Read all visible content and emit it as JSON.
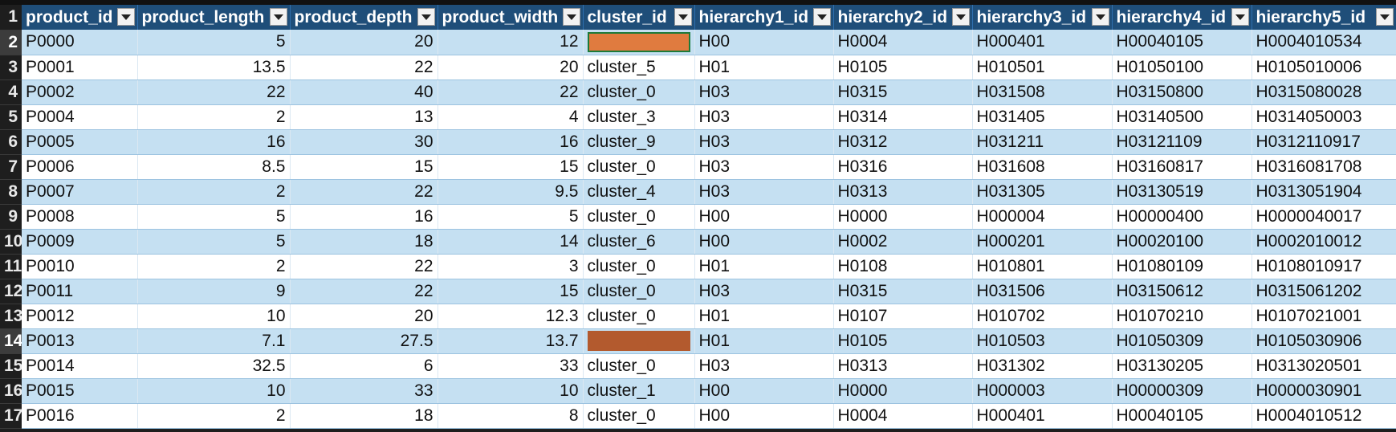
{
  "columns": [
    "product_id",
    "product_length",
    "product_depth",
    "product_width",
    "cluster_id",
    "hierarchy1_id",
    "hierarchy2_id",
    "hierarchy3_id",
    "hierarchy4_id",
    "hierarchy5_id"
  ],
  "header_row_number": "1",
  "rows": [
    {
      "n": "2",
      "product_id": "P0000",
      "product_length": "5",
      "product_depth": "20",
      "product_width": "12",
      "cluster_id": "",
      "cluster_fill": "#e07b3f",
      "h1": "H00",
      "h2": "H0004",
      "h3": "H000401",
      "h4": "H00040105",
      "h5": "H0004010534"
    },
    {
      "n": "3",
      "product_id": "P0001",
      "product_length": "13.5",
      "product_depth": "22",
      "product_width": "20",
      "cluster_id": "cluster_5",
      "h1": "H01",
      "h2": "H0105",
      "h3": "H010501",
      "h4": "H01050100",
      "h5": "H0105010006"
    },
    {
      "n": "4",
      "product_id": "P0002",
      "product_length": "22",
      "product_depth": "40",
      "product_width": "22",
      "cluster_id": "cluster_0",
      "h1": "H03",
      "h2": "H0315",
      "h3": "H031508",
      "h4": "H03150800",
      "h5": "H0315080028"
    },
    {
      "n": "5",
      "product_id": "P0004",
      "product_length": "2",
      "product_depth": "13",
      "product_width": "4",
      "cluster_id": "cluster_3",
      "h1": "H03",
      "h2": "H0314",
      "h3": "H031405",
      "h4": "H03140500",
      "h5": "H0314050003"
    },
    {
      "n": "6",
      "product_id": "P0005",
      "product_length": "16",
      "product_depth": "30",
      "product_width": "16",
      "cluster_id": "cluster_9",
      "h1": "H03",
      "h2": "H0312",
      "h3": "H031211",
      "h4": "H03121109",
      "h5": "H0312110917"
    },
    {
      "n": "7",
      "product_id": "P0006",
      "product_length": "8.5",
      "product_depth": "15",
      "product_width": "15",
      "cluster_id": "cluster_0",
      "h1": "H03",
      "h2": "H0316",
      "h3": "H031608",
      "h4": "H03160817",
      "h5": "H0316081708"
    },
    {
      "n": "8",
      "product_id": "P0007",
      "product_length": "2",
      "product_depth": "22",
      "product_width": "9.5",
      "cluster_id": "cluster_4",
      "h1": "H03",
      "h2": "H0313",
      "h3": "H031305",
      "h4": "H03130519",
      "h5": "H0313051904"
    },
    {
      "n": "9",
      "product_id": "P0008",
      "product_length": "5",
      "product_depth": "16",
      "product_width": "5",
      "cluster_id": "cluster_0",
      "h1": "H00",
      "h2": "H0000",
      "h3": "H000004",
      "h4": "H00000400",
      "h5": "H0000040017"
    },
    {
      "n": "10",
      "product_id": "P0009",
      "product_length": "5",
      "product_depth": "18",
      "product_width": "14",
      "cluster_id": "cluster_6",
      "h1": "H00",
      "h2": "H0002",
      "h3": "H000201",
      "h4": "H00020100",
      "h5": "H0002010012"
    },
    {
      "n": "11",
      "product_id": "P0010",
      "product_length": "2",
      "product_depth": "22",
      "product_width": "3",
      "cluster_id": "cluster_0",
      "h1": "H01",
      "h2": "H0108",
      "h3": "H010801",
      "h4": "H01080109",
      "h5": "H0108010917"
    },
    {
      "n": "12",
      "product_id": "P0011",
      "product_length": "9",
      "product_depth": "22",
      "product_width": "15",
      "cluster_id": "cluster_0",
      "h1": "H03",
      "h2": "H0315",
      "h3": "H031506",
      "h4": "H03150612",
      "h5": "H0315061202"
    },
    {
      "n": "13",
      "product_id": "P0012",
      "product_length": "10",
      "product_depth": "20",
      "product_width": "12.3",
      "cluster_id": "cluster_0",
      "h1": "H01",
      "h2": "H0107",
      "h3": "H010702",
      "h4": "H01070210",
      "h5": "H0107021001"
    },
    {
      "n": "14",
      "product_id": "P0013",
      "product_length": "7.1",
      "product_depth": "27.5",
      "product_width": "13.7",
      "cluster_id": "",
      "cluster_fill": "#b35a2e",
      "h1": "H01",
      "h2": "H0105",
      "h3": "H010503",
      "h4": "H01050309",
      "h5": "H0105030906"
    },
    {
      "n": "15",
      "product_id": "P0014",
      "product_length": "32.5",
      "product_depth": "6",
      "product_width": "33",
      "cluster_id": "cluster_0",
      "h1": "H03",
      "h2": "H0313",
      "h3": "H031302",
      "h4": "H03130205",
      "h5": "H0313020501"
    },
    {
      "n": "16",
      "product_id": "P0015",
      "product_length": "10",
      "product_depth": "33",
      "product_width": "10",
      "cluster_id": "cluster_1",
      "h1": "H00",
      "h2": "H0000",
      "h3": "H000003",
      "h4": "H00000309",
      "h5": "H0000030901"
    },
    {
      "n": "17",
      "product_id": "P0016",
      "product_length": "2",
      "product_depth": "18",
      "product_width": "8",
      "cluster_id": "cluster_0",
      "h1": "H00",
      "h2": "H0004",
      "h3": "H000401",
      "h4": "H00040105",
      "h5": "H0004010512"
    }
  ],
  "colors": {
    "header_bg": "#1f4e79",
    "band_bg": "#c5e0f2",
    "selection_border": "#1d7a3a"
  }
}
